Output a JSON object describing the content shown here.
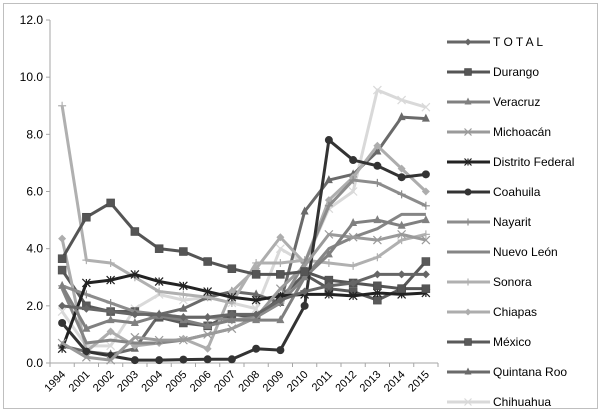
{
  "chart_data": {
    "type": "line",
    "title": "",
    "xlabel": "",
    "ylabel": "",
    "ylim": [
      0,
      12
    ],
    "yticks": [
      "0.0",
      "2.0",
      "4.0",
      "6.0",
      "8.0",
      "10.0",
      "12.0"
    ],
    "grid": false,
    "legend_position": "right",
    "categories": [
      "1994",
      "2001",
      "2002",
      "2003",
      "2004",
      "2005",
      "2006",
      "2007",
      "2008",
      "2009",
      "2010",
      "2011",
      "2012",
      "2013",
      "2014",
      "2015"
    ],
    "series": [
      {
        "name": "T O T A L",
        "color": "#666666",
        "marker": "diamond",
        "values": [
          2.0,
          1.9,
          1.8,
          1.7,
          1.7,
          1.6,
          1.6,
          1.7,
          1.7,
          2.2,
          2.5,
          2.7,
          2.8,
          3.1,
          3.1,
          3.1
        ]
      },
      {
        "name": "Durango",
        "color": "#555555",
        "marker": "square",
        "values": [
          3.65,
          5.1,
          5.6,
          4.6,
          4.0,
          3.9,
          3.55,
          3.3,
          3.1,
          3.1,
          3.2,
          2.9,
          2.8,
          2.7,
          2.6,
          2.6
        ]
      },
      {
        "name": "Veracruz",
        "color": "#808080",
        "marker": "triangle",
        "values": [
          2.7,
          1.2,
          1.5,
          1.4,
          1.65,
          1.5,
          1.3,
          1.5,
          1.5,
          1.5,
          3.0,
          3.8,
          4.9,
          5.0,
          4.8,
          5.0
        ]
      },
      {
        "name": "Michoacán",
        "color": "#9a9a9a",
        "marker": "x",
        "values": [
          0.7,
          0.2,
          0.1,
          0.9,
          0.8,
          0.8,
          1.0,
          1.2,
          1.6,
          2.6,
          3.4,
          4.5,
          4.4,
          4.3,
          4.5,
          4.3
        ]
      },
      {
        "name": "Distrito Federal",
        "color": "#222222",
        "marker": "star",
        "values": [
          0.5,
          2.8,
          2.9,
          3.1,
          2.85,
          2.7,
          2.5,
          2.3,
          2.2,
          2.35,
          2.4,
          2.4,
          2.35,
          2.45,
          2.4,
          2.45
        ]
      },
      {
        "name": "Coahuila",
        "color": "#333333",
        "marker": "circle",
        "values": [
          1.4,
          0.4,
          0.25,
          0.1,
          0.1,
          0.12,
          0.13,
          0.13,
          0.5,
          0.45,
          2.0,
          7.8,
          7.1,
          6.9,
          6.5,
          6.6
        ]
      },
      {
        "name": "Nayarit",
        "color": "#8c8c8c",
        "marker": "plus",
        "values": [
          2.7,
          2.4,
          2.1,
          1.8,
          1.7,
          1.6,
          1.6,
          1.5,
          1.6,
          2.1,
          3.5,
          5.5,
          6.4,
          6.3,
          5.9,
          5.5
        ]
      },
      {
        "name": "Nuevo León",
        "color": "#858585",
        "marker": "none",
        "values": [
          2.6,
          0.7,
          0.8,
          0.7,
          0.7,
          0.8,
          1.0,
          1.2,
          1.6,
          2.1,
          3.0,
          4.0,
          4.4,
          4.7,
          5.2,
          5.2
        ]
      },
      {
        "name": "Sonora",
        "color": "#b0b0b0",
        "marker": "plus",
        "values": [
          9.0,
          3.6,
          3.5,
          3.0,
          2.5,
          2.4,
          2.3,
          2.1,
          3.5,
          3.5,
          3.6,
          3.5,
          3.4,
          3.7,
          4.3,
          4.5
        ]
      },
      {
        "name": "Chiapas",
        "color": "#adadad",
        "marker": "diamond",
        "values": [
          4.35,
          0.4,
          1.1,
          0.6,
          0.7,
          0.85,
          0.5,
          2.5,
          3.3,
          4.4,
          3.5,
          5.7,
          6.5,
          7.6,
          6.8,
          6.0
        ]
      },
      {
        "name": "México",
        "color": "#5a5a5a",
        "marker": "square",
        "values": [
          3.25,
          2.0,
          1.8,
          1.8,
          1.6,
          1.4,
          1.3,
          1.7,
          1.6,
          2.3,
          3.1,
          2.6,
          2.5,
          2.2,
          2.6,
          3.55
        ]
      },
      {
        "name": "Quintana Roo",
        "color": "#6a6a6a",
        "marker": "triangle",
        "values": [
          0.6,
          0.4,
          0.3,
          0.5,
          1.7,
          1.9,
          2.3,
          2.5,
          2.4,
          2.1,
          5.3,
          6.4,
          6.6,
          7.4,
          8.6,
          8.55
        ]
      },
      {
        "name": "Chihuahua",
        "color": "#d9d9d9",
        "marker": "x",
        "values": [
          1.8,
          0.6,
          0.6,
          1.9,
          2.4,
          2.2,
          2.3,
          2.1,
          1.9,
          4.0,
          3.5,
          5.4,
          6.0,
          9.55,
          9.2,
          8.95
        ]
      }
    ]
  }
}
